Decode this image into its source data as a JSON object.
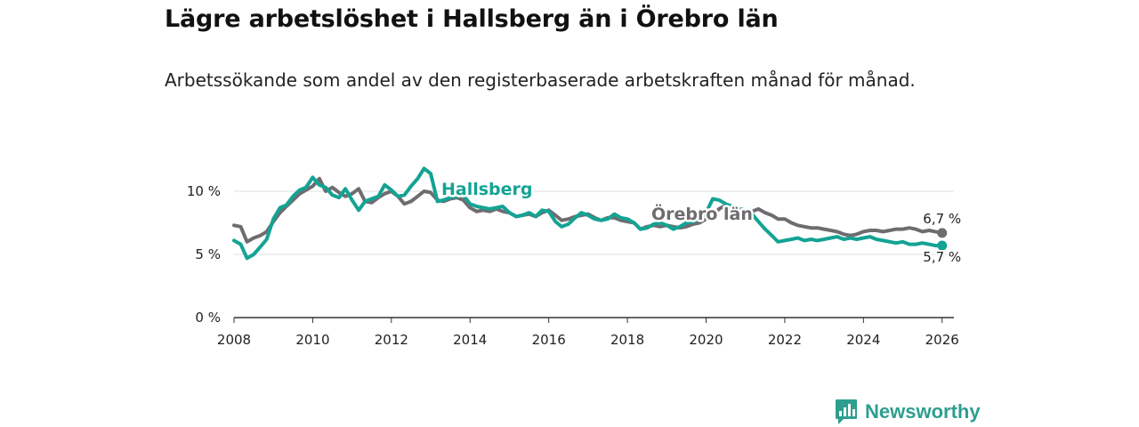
{
  "title": "Lägre arbetslöshet i Hallsberg än i Örebro län",
  "subtitle": "Arbetssökande som andel av den registerbaserade arbetskraften månad för månad.",
  "logo": {
    "text": "Newsworthy",
    "icon": "bar-chart-icon"
  },
  "colors": {
    "hallsberg": "#14a394",
    "orebro": "#6f6c70",
    "grid": "#dddddd",
    "axis": "#333333"
  },
  "chart_data": {
    "type": "line",
    "title": "Lägre arbetslöshet i Hallsberg än i Örebro län",
    "xlabel": "",
    "ylabel": "",
    "xlim": [
      2008,
      2026.3
    ],
    "ylim": [
      0,
      10
    ],
    "x_ticks": [
      2008,
      2010,
      2012,
      2014,
      2016,
      2018,
      2020,
      2022,
      2024,
      2026
    ],
    "x_tick_labels": [
      "2008",
      "2010",
      "2012",
      "2014",
      "2016",
      "2018",
      "2020",
      "2022",
      "2024",
      "2026"
    ],
    "y_ticks": [
      0,
      5,
      10
    ],
    "y_tick_labels": [
      "0 %",
      "5 %",
      "10 %"
    ],
    "grid": true,
    "series": [
      {
        "name": "Örebro län",
        "label": "Örebro län",
        "end_label": "6,7 %",
        "x": [
          2008.0,
          2008.17,
          2008.33,
          2008.5,
          2008.67,
          2008.83,
          2009.0,
          2009.17,
          2009.33,
          2009.5,
          2009.67,
          2009.83,
          2010.0,
          2010.17,
          2010.33,
          2010.5,
          2010.67,
          2010.83,
          2011.0,
          2011.17,
          2011.33,
          2011.5,
          2011.67,
          2011.83,
          2012.0,
          2012.17,
          2012.33,
          2012.5,
          2012.67,
          2012.83,
          2013.0,
          2013.17,
          2013.33,
          2013.5,
          2013.67,
          2013.83,
          2014.0,
          2014.17,
          2014.33,
          2014.5,
          2014.67,
          2014.83,
          2015.0,
          2015.17,
          2015.33,
          2015.5,
          2015.67,
          2015.83,
          2016.0,
          2016.17,
          2016.33,
          2016.5,
          2016.67,
          2016.83,
          2017.0,
          2017.17,
          2017.33,
          2017.5,
          2017.67,
          2017.83,
          2018.0,
          2018.17,
          2018.33,
          2018.5,
          2018.67,
          2018.83,
          2019.0,
          2019.17,
          2019.33,
          2019.5,
          2019.67,
          2019.83,
          2020.0,
          2020.17,
          2020.33,
          2020.5,
          2020.67,
          2020.83,
          2021.0,
          2021.17,
          2021.33,
          2021.5,
          2021.67,
          2021.83,
          2022.0,
          2022.17,
          2022.33,
          2022.5,
          2022.67,
          2022.83,
          2023.0,
          2023.17,
          2023.33,
          2023.5,
          2023.67,
          2023.83,
          2024.0,
          2024.17,
          2024.33,
          2024.5,
          2024.67,
          2024.83,
          2025.0,
          2025.17,
          2025.33,
          2025.5,
          2025.67,
          2025.83,
          2026.0
        ],
        "values": [
          7.3,
          7.2,
          6.0,
          6.3,
          6.5,
          6.8,
          7.6,
          8.3,
          8.8,
          9.3,
          9.8,
          10.1,
          10.4,
          11.0,
          10.0,
          10.3,
          9.9,
          9.6,
          9.8,
          10.2,
          9.2,
          9.1,
          9.5,
          9.8,
          10.0,
          9.6,
          9.0,
          9.2,
          9.6,
          10.0,
          9.9,
          9.3,
          9.2,
          9.4,
          9.5,
          9.3,
          8.7,
          8.4,
          8.5,
          8.4,
          8.6,
          8.4,
          8.3,
          8.0,
          8.1,
          8.2,
          8.0,
          8.3,
          8.5,
          8.1,
          7.7,
          7.8,
          8.0,
          8.1,
          8.2,
          7.9,
          7.7,
          7.9,
          7.9,
          7.7,
          7.6,
          7.5,
          7.0,
          7.2,
          7.3,
          7.2,
          7.3,
          7.2,
          7.1,
          7.2,
          7.4,
          7.5,
          7.8,
          8.1,
          8.6,
          8.9,
          8.8,
          8.6,
          8.5,
          8.4,
          8.6,
          8.3,
          8.1,
          7.8,
          7.8,
          7.5,
          7.3,
          7.2,
          7.1,
          7.1,
          7.0,
          6.9,
          6.8,
          6.6,
          6.5,
          6.6,
          6.8,
          6.9,
          6.9,
          6.8,
          6.9,
          7.0,
          7.0,
          7.1,
          7.0,
          6.8,
          6.9,
          6.8,
          6.7
        ]
      },
      {
        "name": "Hallsberg",
        "label": "Hallsberg",
        "end_label": "5,7 %",
        "x": [
          2008.0,
          2008.17,
          2008.33,
          2008.5,
          2008.67,
          2008.83,
          2009.0,
          2009.17,
          2009.33,
          2009.5,
          2009.67,
          2009.83,
          2010.0,
          2010.17,
          2010.33,
          2010.5,
          2010.67,
          2010.83,
          2011.0,
          2011.17,
          2011.33,
          2011.5,
          2011.67,
          2011.83,
          2012.0,
          2012.17,
          2012.33,
          2012.5,
          2012.67,
          2012.83,
          2013.0,
          2013.17,
          2013.33,
          2013.5,
          2013.67,
          2013.83,
          2014.0,
          2014.17,
          2014.33,
          2014.5,
          2014.67,
          2014.83,
          2015.0,
          2015.17,
          2015.33,
          2015.5,
          2015.67,
          2015.83,
          2016.0,
          2016.17,
          2016.33,
          2016.5,
          2016.67,
          2016.83,
          2017.0,
          2017.17,
          2017.33,
          2017.5,
          2017.67,
          2017.83,
          2018.0,
          2018.17,
          2018.33,
          2018.5,
          2018.67,
          2018.83,
          2019.0,
          2019.17,
          2019.33,
          2019.5,
          2019.67,
          2019.83,
          2020.0,
          2020.17,
          2020.33,
          2020.5,
          2020.67,
          2020.83,
          2021.0,
          2021.17,
          2021.33,
          2021.5,
          2021.67,
          2021.83,
          2022.0,
          2022.17,
          2022.33,
          2022.5,
          2022.67,
          2022.83,
          2023.0,
          2023.17,
          2023.33,
          2023.5,
          2023.67,
          2023.83,
          2024.0,
          2024.17,
          2024.33,
          2024.5,
          2024.67,
          2024.83,
          2025.0,
          2025.17,
          2025.33,
          2025.5,
          2025.67,
          2025.83,
          2026.0
        ],
        "values": [
          6.1,
          5.8,
          4.7,
          5.0,
          5.6,
          6.2,
          7.8,
          8.7,
          8.9,
          9.6,
          10.1,
          10.3,
          11.1,
          10.5,
          10.3,
          9.7,
          9.5,
          10.2,
          9.3,
          8.5,
          9.2,
          9.4,
          9.6,
          10.5,
          10.1,
          9.6,
          9.7,
          10.4,
          11.0,
          11.8,
          11.4,
          9.2,
          9.3,
          9.5,
          9.6,
          9.7,
          9.0,
          8.8,
          8.7,
          8.6,
          8.7,
          8.8,
          8.3,
          8.0,
          8.1,
          8.3,
          8.0,
          8.5,
          8.4,
          7.6,
          7.2,
          7.4,
          7.9,
          8.3,
          8.1,
          7.8,
          7.7,
          7.8,
          8.2,
          7.9,
          7.8,
          7.5,
          7.0,
          7.1,
          7.4,
          7.5,
          7.3,
          7.0,
          7.2,
          7.5,
          7.6,
          7.8,
          8.3,
          9.4,
          9.3,
          9.0,
          8.8,
          8.6,
          8.5,
          8.2,
          7.6,
          7.0,
          6.5,
          6.0,
          6.1,
          6.2,
          6.3,
          6.1,
          6.2,
          6.1,
          6.2,
          6.3,
          6.4,
          6.2,
          6.3,
          6.2,
          6.3,
          6.4,
          6.2,
          6.1,
          6.0,
          5.9,
          6.0,
          5.8,
          5.8,
          5.9,
          5.8,
          5.7,
          5.7
        ]
      }
    ]
  }
}
